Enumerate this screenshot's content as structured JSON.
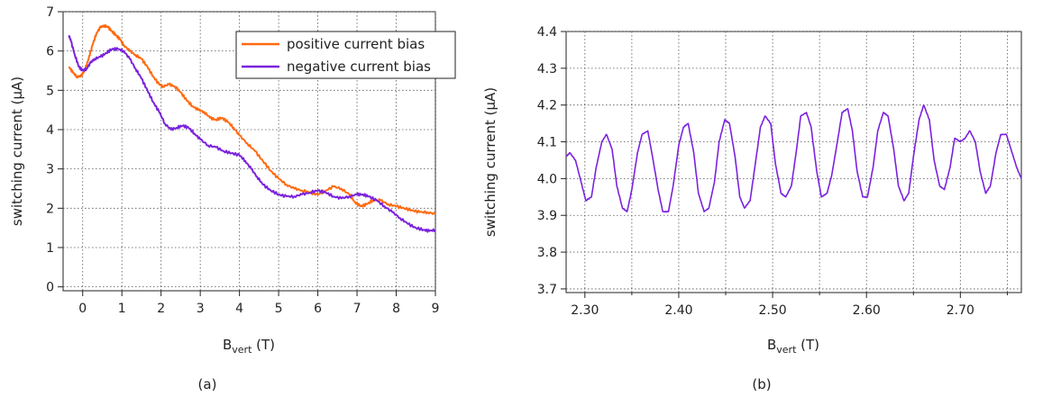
{
  "chart_data": [
    {
      "type": "line",
      "panel_label": "(a)",
      "xlabel_main": "B",
      "xlabel_sub": "vert",
      "xlabel_unit": " (T)",
      "ylabel": "switching current (µA)",
      "xlim": [
        -0.5,
        9
      ],
      "ylim": [
        -0.1,
        7
      ],
      "xticks": [
        0,
        1,
        2,
        3,
        4,
        5,
        6,
        7,
        8,
        9
      ],
      "yticks": [
        0,
        1,
        2,
        3,
        4,
        5,
        6,
        7
      ],
      "grid": true,
      "legend_position": "top-right",
      "series": [
        {
          "name": "positive current bias",
          "color": "#ff6a10",
          "x": [
            -0.35,
            -0.25,
            -0.15,
            -0.05,
            0.05,
            0.15,
            0.25,
            0.35,
            0.45,
            0.55,
            0.65,
            0.75,
            0.85,
            0.95,
            1.05,
            1.2,
            1.35,
            1.5,
            1.65,
            1.8,
            1.95,
            2.05,
            2.2,
            2.35,
            2.5,
            2.65,
            2.8,
            2.95,
            3.1,
            3.25,
            3.4,
            3.55,
            3.7,
            3.85,
            4.0,
            4.2,
            4.4,
            4.6,
            4.8,
            5.0,
            5.2,
            5.4,
            5.6,
            5.8,
            6.0,
            6.2,
            6.4,
            6.6,
            6.8,
            6.95,
            7.1,
            7.25,
            7.4,
            7.6,
            7.8,
            8.0,
            8.2,
            8.4,
            8.6,
            8.8,
            9.0
          ],
          "y": [
            5.6,
            5.45,
            5.35,
            5.35,
            5.5,
            5.8,
            6.15,
            6.45,
            6.6,
            6.65,
            6.6,
            6.5,
            6.4,
            6.3,
            6.15,
            6.0,
            5.9,
            5.8,
            5.6,
            5.35,
            5.15,
            5.1,
            5.15,
            5.1,
            4.95,
            4.75,
            4.6,
            4.5,
            4.45,
            4.3,
            4.25,
            4.3,
            4.2,
            4.05,
            3.85,
            3.65,
            3.45,
            3.2,
            2.95,
            2.75,
            2.6,
            2.5,
            2.45,
            2.4,
            2.35,
            2.45,
            2.55,
            2.5,
            2.35,
            2.15,
            2.05,
            2.1,
            2.2,
            2.2,
            2.1,
            2.05,
            2.0,
            1.95,
            1.9,
            1.9,
            1.85
          ]
        },
        {
          "name": "negative current bias",
          "color": "#7b22dd",
          "x": [
            -0.35,
            -0.3,
            -0.2,
            -0.1,
            0.0,
            0.1,
            0.2,
            0.3,
            0.45,
            0.6,
            0.75,
            0.9,
            1.05,
            1.2,
            1.35,
            1.5,
            1.65,
            1.8,
            1.95,
            2.1,
            2.25,
            2.4,
            2.55,
            2.7,
            2.85,
            3.0,
            3.2,
            3.4,
            3.6,
            3.8,
            4.0,
            4.15,
            4.3,
            4.45,
            4.6,
            4.8,
            5.0,
            5.2,
            5.4,
            5.6,
            5.8,
            6.0,
            6.2,
            6.4,
            6.6,
            6.8,
            7.0,
            7.15,
            7.3,
            7.5,
            7.7,
            7.9,
            8.1,
            8.3,
            8.5,
            8.7,
            8.85,
            9.0
          ],
          "y": [
            6.4,
            6.25,
            5.9,
            5.6,
            5.5,
            5.55,
            5.7,
            5.8,
            5.85,
            5.95,
            6.05,
            6.05,
            6.0,
            5.8,
            5.55,
            5.3,
            5.0,
            4.7,
            4.45,
            4.15,
            4.0,
            4.05,
            4.1,
            4.05,
            3.9,
            3.75,
            3.6,
            3.55,
            3.45,
            3.4,
            3.35,
            3.2,
            3.0,
            2.8,
            2.6,
            2.45,
            2.35,
            2.3,
            2.3,
            2.35,
            2.4,
            2.45,
            2.4,
            2.3,
            2.25,
            2.3,
            2.35,
            2.35,
            2.3,
            2.2,
            2.05,
            1.9,
            1.75,
            1.6,
            1.5,
            1.45,
            1.42,
            1.45
          ]
        }
      ]
    },
    {
      "type": "line",
      "panel_label": "(b)",
      "xlabel_main": "B",
      "xlabel_sub": "vert",
      "xlabel_unit": " (T)",
      "ylabel": "switching current (µA)",
      "xlim": [
        2.28,
        2.765
      ],
      "ylim": [
        3.69,
        4.4
      ],
      "xticks": [
        2.3,
        2.4,
        2.5,
        2.6,
        2.7
      ],
      "xtick_labels": [
        "2.30",
        "2.40",
        "2.50",
        "2.60",
        "2.70"
      ],
      "xticks_minor": [
        2.35,
        2.45,
        2.55,
        2.65,
        2.75
      ],
      "yticks": [
        3.7,
        3.8,
        3.9,
        4.0,
        4.1,
        4.2,
        4.3,
        4.4
      ],
      "ytick_labels": [
        "3.7",
        "3.8",
        "3.9",
        "4.0",
        "4.1",
        "4.2",
        "4.3",
        "4.4"
      ],
      "grid": true,
      "series": [
        {
          "color": "#7b22dd",
          "x": [
            2.28,
            2.284,
            2.29,
            2.296,
            2.301,
            2.307,
            2.312,
            2.318,
            2.323,
            2.329,
            2.334,
            2.34,
            2.345,
            2.35,
            2.356,
            2.361,
            2.367,
            2.372,
            2.378,
            2.383,
            2.389,
            2.394,
            2.4,
            2.405,
            2.41,
            2.416,
            2.421,
            2.427,
            2.432,
            2.438,
            2.443,
            2.449,
            2.454,
            2.46,
            2.465,
            2.47,
            2.476,
            2.481,
            2.487,
            2.492,
            2.498,
            2.503,
            2.509,
            2.514,
            2.52,
            2.525,
            2.53,
            2.536,
            2.541,
            2.547,
            2.552,
            2.558,
            2.563,
            2.569,
            2.574,
            2.58,
            2.585,
            2.59,
            2.596,
            2.601,
            2.607,
            2.612,
            2.618,
            2.623,
            2.629,
            2.634,
            2.64,
            2.645,
            2.65,
            2.656,
            2.661,
            2.667,
            2.672,
            2.678,
            2.683,
            2.689,
            2.694,
            2.7,
            2.705,
            2.71,
            2.716,
            2.721,
            2.727,
            2.732,
            2.738,
            2.743,
            2.749,
            2.754,
            2.76,
            2.765
          ],
          "y": [
            4.06,
            4.07,
            4.05,
            3.99,
            3.94,
            3.95,
            4.03,
            4.1,
            4.12,
            4.08,
            3.98,
            3.92,
            3.91,
            3.97,
            4.07,
            4.12,
            4.13,
            4.06,
            3.97,
            3.91,
            3.91,
            3.98,
            4.09,
            4.14,
            4.15,
            4.07,
            3.96,
            3.91,
            3.92,
            3.99,
            4.1,
            4.16,
            4.15,
            4.06,
            3.95,
            3.92,
            3.94,
            4.03,
            4.14,
            4.17,
            4.15,
            4.04,
            3.96,
            3.95,
            3.98,
            4.07,
            4.17,
            4.18,
            4.14,
            4.02,
            3.95,
            3.96,
            4.01,
            4.1,
            4.18,
            4.19,
            4.13,
            4.02,
            3.95,
            3.95,
            4.03,
            4.13,
            4.18,
            4.17,
            4.08,
            3.98,
            3.94,
            3.96,
            4.06,
            4.16,
            4.2,
            4.16,
            4.05,
            3.98,
            3.97,
            4.03,
            4.11,
            4.1,
            4.11,
            4.13,
            4.1,
            4.02,
            3.96,
            3.98,
            4.07,
            4.12,
            4.12,
            4.08,
            4.03,
            4.0
          ]
        }
      ]
    }
  ]
}
